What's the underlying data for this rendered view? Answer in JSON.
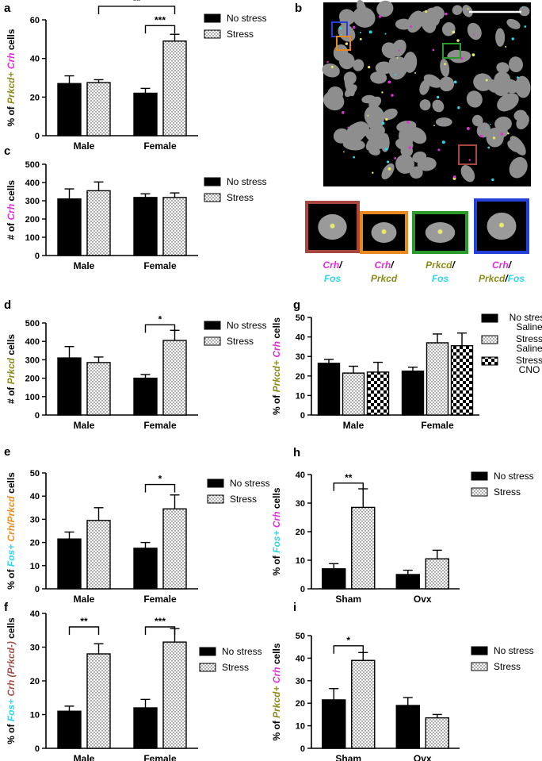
{
  "colors": {
    "magenta": "#e12fd8",
    "olive": "#8b8b1a",
    "orange": "#f08c1e",
    "cyan": "#2fd6e6",
    "brown": "#a0524a",
    "black": "#000000",
    "inset_red": "#a8473e",
    "inset_orange": "#e8881f",
    "inset_green": "#2a9a2a",
    "inset_blue": "#2340d8"
  },
  "panel_b": {
    "label": "b",
    "insets": [
      {
        "border": "inset_red",
        "label_parts": [
          {
            "t": "Crh",
            "c": "magenta"
          },
          {
            "t": "/",
            "c": "black"
          },
          {
            "t": "Fos",
            "c": "cyan"
          }
        ],
        "line2": true
      },
      {
        "border": "inset_orange",
        "label_parts": [
          {
            "t": "Crh",
            "c": "magenta"
          },
          {
            "t": "/",
            "c": "black"
          },
          {
            "t": "Prkcd",
            "c": "olive"
          }
        ],
        "line2": true
      },
      {
        "border": "inset_green",
        "label_parts": [
          {
            "t": "Prkcd",
            "c": "olive"
          },
          {
            "t": "/",
            "c": "black"
          },
          {
            "t": "Fos",
            "c": "cyan"
          }
        ],
        "line2": true
      },
      {
        "border": "inset_blue",
        "label_parts": [
          {
            "t": "Crh",
            "c": "magenta"
          },
          {
            "t": "/",
            "c": "black"
          },
          {
            "t": "Prkcd",
            "c": "olive"
          },
          {
            "t": "/",
            "c": "black"
          },
          {
            "t": "Fos",
            "c": "cyan"
          }
        ],
        "line2": true
      }
    ]
  },
  "chart_data": [
    {
      "label": "a",
      "type": "bar",
      "categories": [
        "Male",
        "Female"
      ],
      "ylim": [
        0,
        60
      ],
      "yticks": [
        0,
        20,
        40,
        60
      ],
      "ylabel_parts": [
        {
          "t": "% of ",
          "c": "black"
        },
        {
          "t": "Prkcd+ ",
          "c": "olive",
          "i": true
        },
        {
          "t": "Crh",
          "c": "magenta",
          "i": true
        },
        {
          "t": " cells",
          "c": "black"
        }
      ],
      "series": [
        {
          "name": "No stress",
          "pattern": "solid",
          "values": [
            27,
            22
          ],
          "errors": [
            4,
            2.5
          ]
        },
        {
          "name": "Stress",
          "pattern": "dots",
          "values": [
            27.5,
            49
          ],
          "errors": [
            1.5,
            3.5
          ]
        }
      ],
      "sig": [
        {
          "from": [
            0,
            1
          ],
          "to": [
            1,
            1
          ],
          "text": "**",
          "level": 67
        },
        {
          "from": [
            1,
            0
          ],
          "to": [
            1,
            1
          ],
          "text": "***",
          "level": 57
        }
      ]
    },
    {
      "label": "c",
      "type": "bar",
      "categories": [
        "Male",
        "Female"
      ],
      "ylim": [
        0,
        500
      ],
      "yticks": [
        0,
        100,
        200,
        300,
        400,
        500
      ],
      "ylabel_parts": [
        {
          "t": "# of ",
          "c": "black"
        },
        {
          "t": "Crh",
          "c": "magenta",
          "i": true
        },
        {
          "t": " cells",
          "c": "black"
        }
      ],
      "series": [
        {
          "name": "No stress",
          "pattern": "solid",
          "values": [
            310,
            318
          ],
          "errors": [
            55,
            20
          ]
        },
        {
          "name": "Stress",
          "pattern": "dots",
          "values": [
            355,
            318
          ],
          "errors": [
            48,
            25
          ]
        }
      ],
      "sig": []
    },
    {
      "label": "d",
      "type": "bar",
      "categories": [
        "Male",
        "Female"
      ],
      "ylim": [
        0,
        500
      ],
      "yticks": [
        0,
        100,
        200,
        300,
        400,
        500
      ],
      "ylabel_parts": [
        {
          "t": "# of ",
          "c": "black"
        },
        {
          "t": "Prkcd",
          "c": "olive",
          "i": true
        },
        {
          "t": " cells",
          "c": "black"
        }
      ],
      "series": [
        {
          "name": "No stress",
          "pattern": "solid",
          "values": [
            310,
            200
          ],
          "errors": [
            62,
            20
          ]
        },
        {
          "name": "Stress",
          "pattern": "dots",
          "values": [
            285,
            405
          ],
          "errors": [
            30,
            55
          ]
        }
      ],
      "sig": [
        {
          "from": [
            1,
            0
          ],
          "to": [
            1,
            1
          ],
          "text": "*",
          "level": 490
        }
      ]
    },
    {
      "label": "e",
      "type": "bar",
      "categories": [
        "Male",
        "Female"
      ],
      "ylim": [
        0,
        50
      ],
      "yticks": [
        0,
        10,
        20,
        30,
        40,
        50
      ],
      "ylabel_parts": [
        {
          "t": "% of ",
          "c": "black"
        },
        {
          "t": "Fos+ ",
          "c": "cyan",
          "i": true
        },
        {
          "t": "Crh/Prkcd",
          "c": "orange",
          "i": true
        },
        {
          "t": " cells",
          "c": "black"
        }
      ],
      "series": [
        {
          "name": "No stress",
          "pattern": "solid",
          "values": [
            21.5,
            17.5
          ],
          "errors": [
            3,
            2.5
          ]
        },
        {
          "name": "Stress",
          "pattern": "dots",
          "values": [
            29.5,
            34.5
          ],
          "errors": [
            5.5,
            6
          ]
        }
      ],
      "sig": [
        {
          "from": [
            1,
            0
          ],
          "to": [
            1,
            1
          ],
          "text": "*",
          "level": 45
        }
      ]
    },
    {
      "label": "f",
      "type": "bar",
      "categories": [
        "Male",
        "Female"
      ],
      "ylim": [
        0,
        40
      ],
      "yticks": [
        0,
        10,
        20,
        30,
        40
      ],
      "ylabel_parts": [
        {
          "t": "% of ",
          "c": "black"
        },
        {
          "t": "Fos+ ",
          "c": "cyan",
          "i": true
        },
        {
          "t": "Crh (Prkcd-)",
          "c": "brown",
          "i": true
        },
        {
          "t": " cells",
          "c": "black"
        }
      ],
      "series": [
        {
          "name": "No stress",
          "pattern": "solid",
          "values": [
            11,
            12
          ],
          "errors": [
            1.5,
            2.5
          ]
        },
        {
          "name": "Stress",
          "pattern": "dots",
          "values": [
            28,
            31.5
          ],
          "errors": [
            3,
            4
          ]
        }
      ],
      "sig": [
        {
          "from": [
            0,
            0
          ],
          "to": [
            0,
            1
          ],
          "text": "**",
          "level": 36
        },
        {
          "from": [
            1,
            0
          ],
          "to": [
            1,
            1
          ],
          "text": "***",
          "level": 36
        }
      ]
    },
    {
      "label": "g",
      "type": "bar",
      "categories": [
        "Male",
        "Female"
      ],
      "ylim": [
        0,
        50
      ],
      "yticks": [
        0,
        10,
        20,
        30,
        40,
        50
      ],
      "ylabel_parts": [
        {
          "t": "% of ",
          "c": "black"
        },
        {
          "t": "Prkcd+ ",
          "c": "olive",
          "i": true
        },
        {
          "t": "Crh",
          "c": "magenta",
          "i": true
        },
        {
          "t": " cells",
          "c": "black"
        }
      ],
      "series": [
        {
          "name": "No stress Saline",
          "legend_lines": [
            "No stress",
            "Saline"
          ],
          "pattern": "solid",
          "values": [
            26.5,
            22.5
          ],
          "errors": [
            2,
            2
          ]
        },
        {
          "name": "Stress Saline",
          "legend_lines": [
            "Stress",
            "Saline"
          ],
          "pattern": "dots",
          "values": [
            21.5,
            37
          ],
          "errors": [
            3.5,
            4.5
          ]
        },
        {
          "name": "Stress CNO",
          "legend_lines": [
            "Stress",
            "CNO"
          ],
          "pattern": "checker",
          "values": [
            22,
            35.5
          ],
          "errors": [
            5,
            6.5
          ]
        }
      ],
      "sig": []
    },
    {
      "label": "h",
      "type": "bar",
      "categories": [
        "Sham",
        "Ovx"
      ],
      "ylim": [
        0,
        40
      ],
      "yticks": [
        0,
        10,
        20,
        30,
        40
      ],
      "ylabel_parts": [
        {
          "t": "% of ",
          "c": "black"
        },
        {
          "t": "Fos+ ",
          "c": "cyan",
          "i": true
        },
        {
          "t": "Crh",
          "c": "magenta",
          "i": true
        },
        {
          "t": " cells",
          "c": "black"
        }
      ],
      "series": [
        {
          "name": "No stress",
          "pattern": "solid",
          "values": [
            7,
            5
          ],
          "errors": [
            1.8,
            1.5
          ]
        },
        {
          "name": "Stress",
          "pattern": "dots",
          "values": [
            28.5,
            10.5
          ],
          "errors": [
            6.5,
            3
          ]
        }
      ],
      "sig": [
        {
          "from": [
            0,
            0
          ],
          "to": [
            0,
            1
          ],
          "text": "**",
          "level": 37
        }
      ]
    },
    {
      "label": "i",
      "type": "bar",
      "categories": [
        "Sham",
        "Ovx"
      ],
      "ylim": [
        0,
        50
      ],
      "yticks": [
        0,
        10,
        20,
        30,
        40,
        50
      ],
      "ylabel_parts": [
        {
          "t": "% of ",
          "c": "black"
        },
        {
          "t": "Prkcd+ ",
          "c": "olive",
          "i": true
        },
        {
          "t": "Crh",
          "c": "magenta",
          "i": true
        },
        {
          "t": " cells",
          "c": "black"
        }
      ],
      "series": [
        {
          "name": "No stress",
          "pattern": "solid",
          "values": [
            21.5,
            19
          ],
          "errors": [
            5,
            3.5
          ]
        },
        {
          "name": "Stress",
          "pattern": "dots",
          "values": [
            39,
            13.5
          ],
          "errors": [
            3.5,
            1.5
          ]
        }
      ],
      "sig": [
        {
          "from": [
            0,
            0
          ],
          "to": [
            0,
            1
          ],
          "text": "*",
          "level": 45.5
        }
      ]
    }
  ]
}
